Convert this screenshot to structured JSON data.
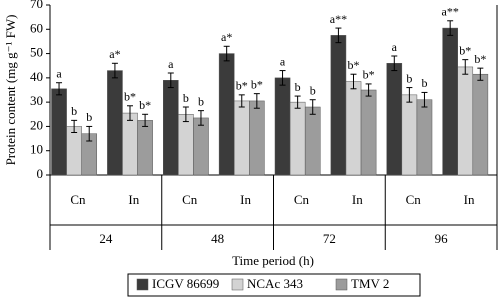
{
  "chart_data": {
    "type": "bar",
    "y_label": "Protein content (mg g⁻¹ FW)",
    "x_label": "Time period (h)",
    "categories": [
      "Cn",
      "In",
      "Cn",
      "In",
      "Cn",
      "In",
      "Cn",
      "In"
    ],
    "groups": [
      "24",
      "48",
      "72",
      "96"
    ],
    "ylim": [
      0,
      70
    ],
    "yticks": [
      0,
      10,
      20,
      30,
      40,
      50,
      60,
      70
    ],
    "series": [
      {
        "name": "ICGV 86699",
        "color": "#3b3b3b",
        "values": [
          35.5,
          43,
          39,
          50,
          40,
          57.5,
          46,
          60.5
        ],
        "errors": [
          2.5,
          3,
          3,
          3,
          3,
          3,
          3,
          3
        ],
        "annotations": [
          "a",
          "a*",
          "a",
          "a*",
          "a",
          "a**",
          "a",
          "a**"
        ]
      },
      {
        "name": "NCAc 343",
        "color": "#d3d3d3",
        "values": [
          20,
          25.5,
          25,
          30.5,
          30,
          38.5,
          33,
          44.5
        ],
        "errors": [
          2.5,
          3,
          3,
          2.5,
          2.5,
          3,
          3,
          3
        ],
        "annotations": [
          "b",
          "b*",
          "b",
          "b*",
          "b",
          "b*",
          "b",
          "b*"
        ]
      },
      {
        "name": "TMV 2",
        "color": "#9c9c9c",
        "values": [
          17,
          22.5,
          23.5,
          30.5,
          28,
          35,
          31,
          41.5
        ],
        "errors": [
          3,
          2.5,
          3,
          3,
          3,
          2.5,
          3,
          2.5
        ],
        "annotations": [
          "b",
          "b*",
          "b",
          "b*",
          "b",
          "b*",
          "b",
          "b*"
        ]
      }
    ]
  }
}
